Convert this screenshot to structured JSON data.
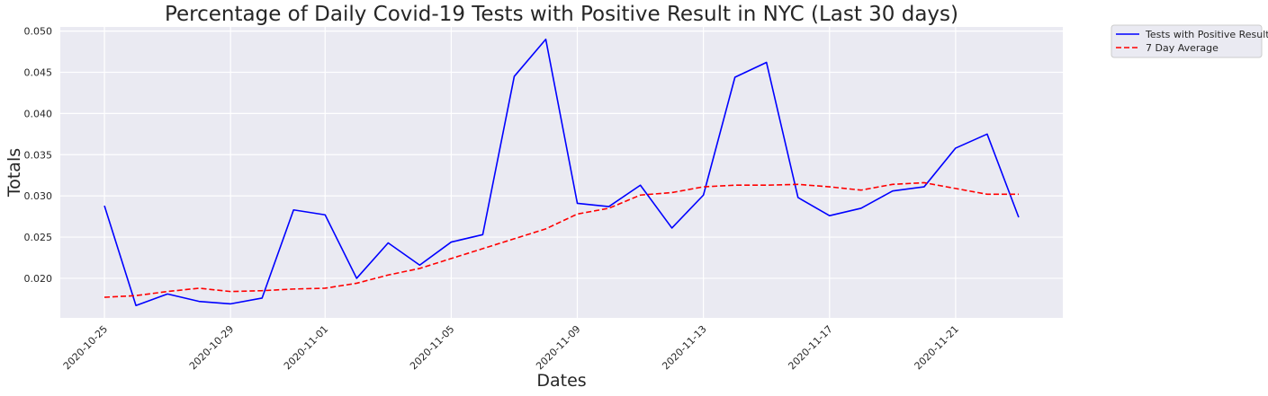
{
  "chart_data": {
    "type": "line",
    "title": "Percentage of Daily Covid-19 Tests with Positive Result in NYC (Last 30 days)",
    "xlabel": "Dates",
    "ylabel": "Totals",
    "x": [
      "2020-10-25",
      "2020-10-26",
      "2020-10-27",
      "2020-10-28",
      "2020-10-29",
      "2020-10-30",
      "2020-10-31",
      "2020-11-01",
      "2020-11-02",
      "2020-11-03",
      "2020-11-04",
      "2020-11-05",
      "2020-11-06",
      "2020-11-07",
      "2020-11-08",
      "2020-11-09",
      "2020-11-10",
      "2020-11-11",
      "2020-11-12",
      "2020-11-13",
      "2020-11-14",
      "2020-11-15",
      "2020-11-16",
      "2020-11-17",
      "2020-11-18",
      "2020-11-19",
      "2020-11-20",
      "2020-11-21",
      "2020-11-22",
      "2020-11-23"
    ],
    "xticks": [
      "2020-10-25",
      "2020-10-29",
      "2020-11-01",
      "2020-11-05",
      "2020-11-09",
      "2020-11-13",
      "2020-11-17",
      "2020-11-21"
    ],
    "xlim": [
      "2020-10-23.6",
      "2020-11-24.4"
    ],
    "ylim": [
      0.0152,
      0.0505
    ],
    "yticks": [
      0.02,
      0.025,
      0.03,
      0.035,
      0.04,
      0.045,
      0.05
    ],
    "ytick_labels": [
      "0.020",
      "0.025",
      "0.030",
      "0.035",
      "0.040",
      "0.045",
      "0.050"
    ],
    "grid": true,
    "legend": "outside-top-right",
    "series": [
      {
        "name": "Tests with Positive Result",
        "color": "#0000ff",
        "style": "solid",
        "values": [
          0.0288,
          0.0167,
          0.0181,
          0.0172,
          0.0169,
          0.0176,
          0.0283,
          0.0277,
          0.02,
          0.0243,
          0.0216,
          0.0244,
          0.0253,
          0.0445,
          0.049,
          0.0291,
          0.0287,
          0.0313,
          0.0261,
          0.0301,
          0.0444,
          0.0462,
          0.0298,
          0.0276,
          0.0285,
          0.0306,
          0.0311,
          0.0358,
          0.0375,
          0.0274
        ]
      },
      {
        "name": "7 Day Average",
        "color": "#ff0000",
        "style": "dashed",
        "values": [
          0.0177,
          0.0179,
          0.0184,
          0.0188,
          0.0184,
          0.0185,
          0.0187,
          0.0188,
          0.0194,
          0.0204,
          0.0212,
          0.0224,
          0.0236,
          0.0248,
          0.026,
          0.0278,
          0.0285,
          0.0301,
          0.0304,
          0.0311,
          0.0313,
          0.0313,
          0.0314,
          0.0311,
          0.0307,
          0.0314,
          0.0316,
          0.0309,
          0.0302,
          0.0302
        ]
      }
    ]
  }
}
